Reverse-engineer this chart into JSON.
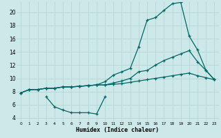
{
  "xlabel": "Humidex (Indice chaleur)",
  "bg_color": "#cce8e8",
  "grid_color": "#b8d8d8",
  "line_color": "#006666",
  "xlim": [
    -0.5,
    23.5
  ],
  "ylim": [
    3.5,
    21.5
  ],
  "xticks": [
    0,
    1,
    2,
    3,
    4,
    5,
    6,
    7,
    8,
    9,
    10,
    11,
    12,
    13,
    14,
    15,
    16,
    17,
    18,
    19,
    20,
    21,
    22,
    23
  ],
  "yticks": [
    4,
    6,
    8,
    10,
    12,
    14,
    16,
    18,
    20
  ],
  "line1_x": [
    0,
    1,
    2,
    3,
    4,
    5,
    6,
    7,
    8,
    9,
    10,
    11,
    12,
    13,
    14,
    15,
    16,
    17,
    18,
    19,
    20,
    21,
    22,
    23
  ],
  "line1_y": [
    7.8,
    8.3,
    8.3,
    8.5,
    8.5,
    8.7,
    8.7,
    8.8,
    8.9,
    9.0,
    9.5,
    10.5,
    11.0,
    11.5,
    14.8,
    18.8,
    19.2,
    20.3,
    21.3,
    21.5,
    16.4,
    14.3,
    11.2,
    9.8
  ],
  "line2_x": [
    0,
    1,
    2,
    3,
    4,
    5,
    6,
    7,
    8,
    9,
    10,
    11,
    12,
    13,
    14,
    15,
    16,
    17,
    18,
    19,
    20,
    21,
    22,
    23
  ],
  "line2_y": [
    7.8,
    8.3,
    8.3,
    8.5,
    8.5,
    8.7,
    8.7,
    8.8,
    8.9,
    9.0,
    9.0,
    9.3,
    9.6,
    10.0,
    11.0,
    11.2,
    12.0,
    12.7,
    13.2,
    13.7,
    14.2,
    12.5,
    11.2,
    9.8
  ],
  "line3_x": [
    0,
    1,
    2,
    3,
    4,
    5,
    6,
    7,
    8,
    9,
    10,
    11,
    12,
    13,
    14,
    15,
    16,
    17,
    18,
    19,
    20,
    21,
    22,
    23
  ],
  "line3_y": [
    7.8,
    8.3,
    8.3,
    8.5,
    8.5,
    8.7,
    8.7,
    8.8,
    8.9,
    9.0,
    9.0,
    9.1,
    9.2,
    9.4,
    9.6,
    9.8,
    10.0,
    10.2,
    10.4,
    10.6,
    10.8,
    10.4,
    10.1,
    9.8
  ],
  "line4_x": [
    3,
    4,
    5,
    6,
    7,
    8,
    9,
    10
  ],
  "line4_y": [
    7.2,
    5.7,
    5.2,
    4.8,
    4.8,
    4.8,
    4.6,
    7.2
  ]
}
